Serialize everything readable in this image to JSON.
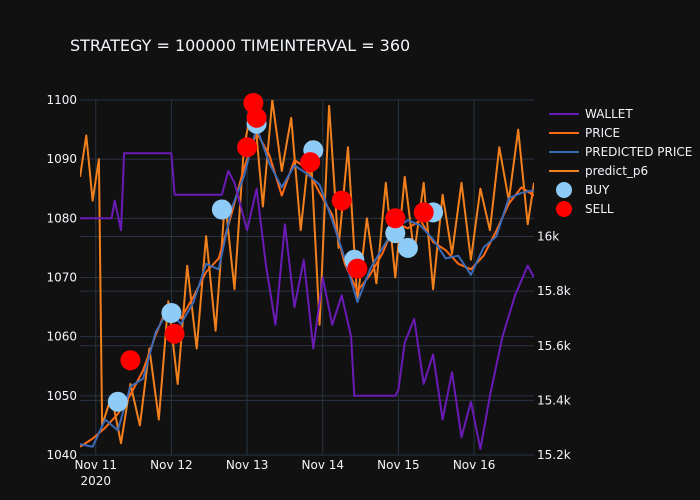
{
  "chart_data": {
    "type": "line",
    "title": "STRATEGY = 100000 TIMEINTERVAL = 360",
    "xlabel": "",
    "ylabel": "",
    "x_range": [
      "2020-11-10 19:00",
      "2020-11-16 19:00"
    ],
    "x_ticks": [
      {
        "date": "2020-11-11",
        "label": "Nov 11",
        "sublabel": "2020"
      },
      {
        "date": "2020-11-12",
        "label": "Nov 12",
        "sublabel": ""
      },
      {
        "date": "2020-11-13",
        "label": "Nov 13",
        "sublabel": ""
      },
      {
        "date": "2020-11-14",
        "label": "Nov 14",
        "sublabel": ""
      },
      {
        "date": "2020-11-15",
        "label": "Nov 15",
        "sublabel": ""
      },
      {
        "date": "2020-11-16",
        "label": "Nov 16",
        "sublabel": ""
      }
    ],
    "y_left": {
      "range": [
        1040,
        1100
      ],
      "ticks": [
        1040,
        1050,
        1060,
        1070,
        1080,
        1090,
        1100
      ]
    },
    "y_right": {
      "range": [
        15200,
        16500
      ],
      "ticks": [
        15200,
        15400,
        15600,
        15800,
        16000
      ],
      "tick_labels": [
        "15.2k",
        "15.4k",
        "15.6k",
        "15.8k",
        "16k"
      ]
    },
    "grid": true,
    "legend_position": "right",
    "series": [
      {
        "name": "WALLET",
        "color": "#6a1bb5",
        "axis": "left",
        "points": [
          [
            "2020-11-10 19:00",
            1080
          ],
          [
            "2020-11-11 05:00",
            1080
          ],
          [
            "2020-11-11 06:00",
            1083
          ],
          [
            "2020-11-11 08:00",
            1078
          ],
          [
            "2020-11-11 09:00",
            1091
          ],
          [
            "2020-11-12 00:00",
            1091
          ],
          [
            "2020-11-12 01:00",
            1084
          ],
          [
            "2020-11-12 16:00",
            1084
          ],
          [
            "2020-11-12 18:00",
            1088
          ],
          [
            "2020-11-12 20:00",
            1086
          ],
          [
            "2020-11-13 00:00",
            1078
          ],
          [
            "2020-11-13 03:00",
            1085
          ],
          [
            "2020-11-13 06:00",
            1072
          ],
          [
            "2020-11-13 09:00",
            1062
          ],
          [
            "2020-11-13 12:00",
            1079
          ],
          [
            "2020-11-13 15:00",
            1065
          ],
          [
            "2020-11-13 18:00",
            1073
          ],
          [
            "2020-11-13 21:00",
            1058
          ],
          [
            "2020-11-14 00:00",
            1070
          ],
          [
            "2020-11-14 03:00",
            1062
          ],
          [
            "2020-11-14 06:00",
            1067
          ],
          [
            "2020-11-14 09:00",
            1060
          ],
          [
            "2020-11-14 10:00",
            1050
          ],
          [
            "2020-11-14 23:00",
            1050
          ],
          [
            "2020-11-15 00:00",
            1051
          ],
          [
            "2020-11-15 02:00",
            1059
          ],
          [
            "2020-11-15 05:00",
            1063
          ],
          [
            "2020-11-15 08:00",
            1052
          ],
          [
            "2020-11-15 11:00",
            1057
          ],
          [
            "2020-11-15 14:00",
            1046
          ],
          [
            "2020-11-15 17:00",
            1054
          ],
          [
            "2020-11-15 20:00",
            1043
          ],
          [
            "2020-11-15 23:00",
            1049
          ],
          [
            "2020-11-16 02:00",
            1041
          ],
          [
            "2020-11-16 05:00",
            1050
          ],
          [
            "2020-11-16 09:00",
            1060
          ],
          [
            "2020-11-16 13:00",
            1067
          ],
          [
            "2020-11-16 17:00",
            1072
          ],
          [
            "2020-11-16 19:00",
            1070
          ]
        ]
      },
      {
        "name": "PRICE",
        "color": "#ff6a13",
        "axis": "right",
        "points": [
          [
            "2020-11-10 19:00",
            15230
          ],
          [
            "2020-11-10 23:00",
            15260
          ],
          [
            "2020-11-11 03:00",
            15300
          ],
          [
            "2020-11-11 07:00",
            15350
          ],
          [
            "2020-11-11 11:00",
            15420
          ],
          [
            "2020-11-11 15:00",
            15510
          ],
          [
            "2020-11-11 19:00",
            15640
          ],
          [
            "2020-11-11 23:00",
            15750
          ],
          [
            "2020-11-12 03:00",
            15700
          ],
          [
            "2020-11-12 07:00",
            15780
          ],
          [
            "2020-11-12 11:00",
            15870
          ],
          [
            "2020-11-12 15:00",
            15920
          ],
          [
            "2020-11-12 19:00",
            16080
          ],
          [
            "2020-11-12 23:00",
            16250
          ],
          [
            "2020-11-13 03:00",
            16380
          ],
          [
            "2020-11-13 07:00",
            16300
          ],
          [
            "2020-11-13 11:00",
            16150
          ],
          [
            "2020-11-13 15:00",
            16280
          ],
          [
            "2020-11-13 19:00",
            16250
          ],
          [
            "2020-11-13 23:00",
            16160
          ],
          [
            "2020-11-14 03:00",
            16080
          ],
          [
            "2020-11-14 07:00",
            15900
          ],
          [
            "2020-11-14 11:00",
            15800
          ],
          [
            "2020-11-14 15:00",
            15860
          ],
          [
            "2020-11-14 19:00",
            15940
          ],
          [
            "2020-11-14 23:00",
            16050
          ],
          [
            "2020-11-15 03:00",
            16030
          ],
          [
            "2020-11-15 07:00",
            16060
          ],
          [
            "2020-11-15 11:00",
            15980
          ],
          [
            "2020-11-15 15:00",
            15950
          ],
          [
            "2020-11-15 19:00",
            15900
          ],
          [
            "2020-11-15 23:00",
            15880
          ],
          [
            "2020-11-16 03:00",
            15930
          ],
          [
            "2020-11-16 07:00",
            16020
          ],
          [
            "2020-11-16 11:00",
            16120
          ],
          [
            "2020-11-16 15:00",
            16180
          ],
          [
            "2020-11-16 19:00",
            16150
          ]
        ]
      },
      {
        "name": "PREDICTED PRICE",
        "color": "#3d6ab5",
        "axis": "right",
        "points": [
          [
            "2020-11-10 19:00",
            15240
          ],
          [
            "2020-11-10 23:00",
            15230
          ],
          [
            "2020-11-11 03:00",
            15330
          ],
          [
            "2020-11-11 07:00",
            15290
          ],
          [
            "2020-11-11 11:00",
            15450
          ],
          [
            "2020-11-11 15:00",
            15480
          ],
          [
            "2020-11-11 19:00",
            15650
          ],
          [
            "2020-11-11 23:00",
            15730
          ],
          [
            "2020-11-12 03:00",
            15680
          ],
          [
            "2020-11-12 07:00",
            15760
          ],
          [
            "2020-11-12 11:00",
            15900
          ],
          [
            "2020-11-12 15:00",
            15880
          ],
          [
            "2020-11-12 19:00",
            16100
          ],
          [
            "2020-11-12 23:00",
            16220
          ],
          [
            "2020-11-13 03:00",
            16400
          ],
          [
            "2020-11-13 07:00",
            16270
          ],
          [
            "2020-11-13 11:00",
            16180
          ],
          [
            "2020-11-13 15:00",
            16260
          ],
          [
            "2020-11-13 19:00",
            16230
          ],
          [
            "2020-11-13 23:00",
            16190
          ],
          [
            "2020-11-14 03:00",
            16060
          ],
          [
            "2020-11-14 07:00",
            15920
          ],
          [
            "2020-11-14 11:00",
            15760
          ],
          [
            "2020-11-14 15:00",
            15880
          ],
          [
            "2020-11-14 19:00",
            15960
          ],
          [
            "2020-11-14 23:00",
            16030
          ],
          [
            "2020-11-15 03:00",
            16060
          ],
          [
            "2020-11-15 07:00",
            16040
          ],
          [
            "2020-11-15 11:00",
            15990
          ],
          [
            "2020-11-15 15:00",
            15920
          ],
          [
            "2020-11-15 19:00",
            15930
          ],
          [
            "2020-11-15 23:00",
            15860
          ],
          [
            "2020-11-16 03:00",
            15960
          ],
          [
            "2020-11-16 07:00",
            16000
          ],
          [
            "2020-11-16 11:00",
            16140
          ],
          [
            "2020-11-16 15:00",
            16160
          ],
          [
            "2020-11-16 19:00",
            16170
          ]
        ]
      },
      {
        "name": "predict_p6",
        "color": "#f2811d",
        "axis": "left",
        "points": [
          [
            "2020-11-10 19:00",
            1087
          ],
          [
            "2020-11-10 21:00",
            1094
          ],
          [
            "2020-11-10 23:00",
            1083
          ],
          [
            "2020-11-11 01:00",
            1090
          ],
          [
            "2020-11-11 02:00",
            1045
          ],
          [
            "2020-11-11 05:00",
            1050
          ],
          [
            "2020-11-11 08:00",
            1042
          ],
          [
            "2020-11-11 11:00",
            1052
          ],
          [
            "2020-11-11 14:00",
            1045
          ],
          [
            "2020-11-11 17:00",
            1058
          ],
          [
            "2020-11-11 20:00",
            1046
          ],
          [
            "2020-11-11 23:00",
            1066
          ],
          [
            "2020-11-12 02:00",
            1052
          ],
          [
            "2020-11-12 05:00",
            1072
          ],
          [
            "2020-11-12 08:00",
            1058
          ],
          [
            "2020-11-12 11:00",
            1077
          ],
          [
            "2020-11-12 14:00",
            1061
          ],
          [
            "2020-11-12 17:00",
            1083
          ],
          [
            "2020-11-12 20:00",
            1068
          ],
          [
            "2020-11-12 23:00",
            1092
          ],
          [
            "2020-11-13 02:00",
            1100
          ],
          [
            "2020-11-13 05:00",
            1082
          ],
          [
            "2020-11-13 08:00",
            1100
          ],
          [
            "2020-11-13 11:00",
            1088
          ],
          [
            "2020-11-13 14:00",
            1097
          ],
          [
            "2020-11-13 17:00",
            1078
          ],
          [
            "2020-11-13 20:00",
            1093
          ],
          [
            "2020-11-13 23:00",
            1062
          ],
          [
            "2020-11-14 02:00",
            1099
          ],
          [
            "2020-11-14 05:00",
            1075
          ],
          [
            "2020-11-14 08:00",
            1092
          ],
          [
            "2020-11-14 11:00",
            1066
          ],
          [
            "2020-11-14 14:00",
            1080
          ],
          [
            "2020-11-14 17:00",
            1069
          ],
          [
            "2020-11-14 20:00",
            1086
          ],
          [
            "2020-11-14 23:00",
            1070
          ],
          [
            "2020-11-15 02:00",
            1087
          ],
          [
            "2020-11-15 05:00",
            1074
          ],
          [
            "2020-11-15 08:00",
            1086
          ],
          [
            "2020-11-15 11:00",
            1068
          ],
          [
            "2020-11-15 14:00",
            1084
          ],
          [
            "2020-11-15 17:00",
            1074
          ],
          [
            "2020-11-15 20:00",
            1086
          ],
          [
            "2020-11-15 23:00",
            1073
          ],
          [
            "2020-11-16 02:00",
            1085
          ],
          [
            "2020-11-16 05:00",
            1078
          ],
          [
            "2020-11-16 08:00",
            1092
          ],
          [
            "2020-11-16 11:00",
            1083
          ],
          [
            "2020-11-16 14:00",
            1095
          ],
          [
            "2020-11-16 17:00",
            1079
          ],
          [
            "2020-11-16 19:00",
            1086
          ]
        ]
      }
    ],
    "markers": {
      "buy": {
        "name": "BUY",
        "color": "#8ecbf7",
        "axis": "left",
        "points": [
          [
            "2020-11-11 07:00",
            1049
          ],
          [
            "2020-11-12 00:00",
            1064
          ],
          [
            "2020-11-12 16:00",
            1081.5
          ],
          [
            "2020-11-13 03:00",
            1096
          ],
          [
            "2020-11-13 21:00",
            1091.5
          ],
          [
            "2020-11-14 10:00",
            1073
          ],
          [
            "2020-11-14 23:00",
            1077.5
          ],
          [
            "2020-11-15 03:00",
            1075
          ],
          [
            "2020-11-15 11:00",
            1081
          ]
        ]
      },
      "sell": {
        "name": "SELL",
        "color": "#ff0000",
        "axis": "left",
        "points": [
          [
            "2020-11-11 11:00",
            1056
          ],
          [
            "2020-11-12 01:00",
            1060.5
          ],
          [
            "2020-11-13 00:00",
            1092
          ],
          [
            "2020-11-13 02:00",
            1099.5
          ],
          [
            "2020-11-13 03:00",
            1097
          ],
          [
            "2020-11-13 20:00",
            1089.5
          ],
          [
            "2020-11-14 06:00",
            1083
          ],
          [
            "2020-11-14 11:00",
            1071.5
          ],
          [
            "2020-11-14 23:00",
            1080
          ],
          [
            "2020-11-15 08:00",
            1081
          ]
        ]
      }
    }
  }
}
